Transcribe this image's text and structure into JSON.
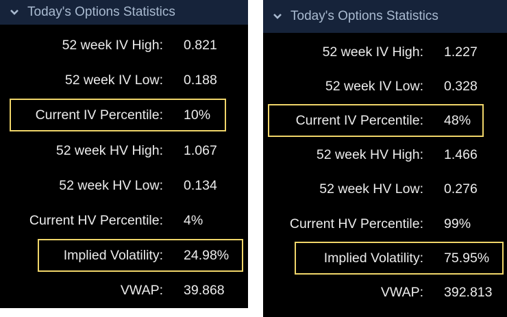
{
  "panels": [
    {
      "header": {
        "title": "Today's Options Statistics"
      },
      "rows": [
        {
          "label": "52 week IV High:",
          "value": "0.821"
        },
        {
          "label": "52 week IV Low:",
          "value": "0.188"
        },
        {
          "label": "Current IV Percentile:",
          "value": "10%",
          "highlighted": true
        },
        {
          "label": "52 week HV High:",
          "value": "1.067"
        },
        {
          "label": "52 week HV Low:",
          "value": "0.134"
        },
        {
          "label": "Current HV Percentile:",
          "value": "4%"
        },
        {
          "label": "Implied Volatility:",
          "value": "24.98%",
          "highlighted": true
        },
        {
          "label": "VWAP:",
          "value": "39.868"
        }
      ]
    },
    {
      "header": {
        "title": "Today's Options Statistics"
      },
      "rows": [
        {
          "label": "52 week IV High:",
          "value": "1.227"
        },
        {
          "label": "52 week IV Low:",
          "value": "0.328"
        },
        {
          "label": "Current IV Percentile:",
          "value": "48%",
          "highlighted": true
        },
        {
          "label": "52 week HV High:",
          "value": "1.466"
        },
        {
          "label": "52 week HV Low:",
          "value": "0.276"
        },
        {
          "label": "Current HV Percentile:",
          "value": "99%"
        },
        {
          "label": "Implied Volatility:",
          "value": "75.95%",
          "highlighted": true
        },
        {
          "label": "VWAP:",
          "value": "392.813"
        }
      ]
    }
  ]
}
